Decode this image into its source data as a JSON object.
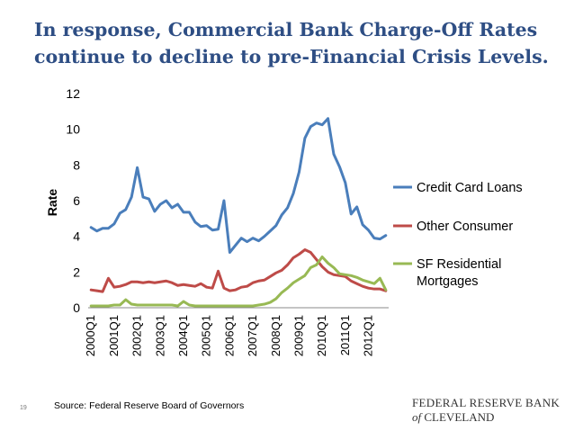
{
  "slide": {
    "title_line1": "In response, Commercial Bank Charge-Off Rates",
    "title_line2": "continue to decline to pre-Financial Crisis Levels.",
    "source": "Source:  Federal Reserve Board of Governors",
    "slide_number": "19",
    "logo_line1": "FEDERAL RESERVE BANK",
    "logo_of": "of",
    "logo_line2": "CLEVELAND"
  },
  "chart_data": {
    "type": "line",
    "title": "",
    "xlabel": "",
    "ylabel": "Rate",
    "ylim": [
      0,
      12
    ],
    "yticks": [
      0,
      2,
      4,
      6,
      8,
      10,
      12
    ],
    "xtick_labels": [
      "2000Q1",
      "2001Q1",
      "2002Q1",
      "2003Q1",
      "2004Q1",
      "2005Q1",
      "2006Q1",
      "2007Q1",
      "2008Q1",
      "2009Q1",
      "2010Q1",
      "2011Q1",
      "2012Q1"
    ],
    "x_count": 52,
    "legend_position": "right",
    "series": [
      {
        "name": "Credit Card Loans",
        "color": "#4A7EBB",
        "values": [
          4.5,
          4.3,
          4.45,
          4.45,
          4.7,
          5.3,
          5.5,
          6.2,
          7.85,
          6.2,
          6.1,
          5.4,
          5.8,
          6.0,
          5.6,
          5.8,
          5.35,
          5.35,
          4.8,
          4.55,
          4.6,
          4.35,
          4.4,
          6.0,
          3.1,
          3.5,
          3.9,
          3.7,
          3.9,
          3.75,
          4.0,
          4.3,
          4.6,
          5.2,
          5.6,
          6.4,
          7.6,
          9.5,
          10.15,
          10.35,
          10.25,
          10.6,
          8.6,
          7.9,
          7.0,
          5.25,
          5.65,
          4.65,
          4.35,
          3.9,
          3.85,
          4.05
        ]
      },
      {
        "name": "Other Consumer",
        "color": "#BE4B48",
        "values": [
          1.0,
          0.95,
          0.9,
          1.65,
          1.15,
          1.2,
          1.3,
          1.45,
          1.45,
          1.4,
          1.45,
          1.4,
          1.45,
          1.5,
          1.4,
          1.25,
          1.3,
          1.25,
          1.2,
          1.35,
          1.15,
          1.1,
          2.05,
          1.1,
          0.95,
          1.0,
          1.15,
          1.2,
          1.4,
          1.5,
          1.55,
          1.75,
          1.95,
          2.1,
          2.4,
          2.8,
          3.0,
          3.25,
          3.1,
          2.7,
          2.3,
          2.0,
          1.85,
          1.8,
          1.75,
          1.5,
          1.35,
          1.2,
          1.1,
          1.05,
          1.05,
          0.95
        ]
      },
      {
        "name": "SF Residential Mortgages",
        "name_line1": "SF Residential",
        "name_line2": "Mortgages",
        "color": "#98B954",
        "values": [
          0.1,
          0.1,
          0.1,
          0.1,
          0.15,
          0.15,
          0.45,
          0.2,
          0.15,
          0.15,
          0.15,
          0.15,
          0.15,
          0.15,
          0.15,
          0.1,
          0.35,
          0.15,
          0.1,
          0.1,
          0.1,
          0.1,
          0.1,
          0.1,
          0.1,
          0.1,
          0.1,
          0.1,
          0.1,
          0.15,
          0.2,
          0.3,
          0.5,
          0.85,
          1.1,
          1.4,
          1.6,
          1.8,
          2.25,
          2.4,
          2.85,
          2.5,
          2.25,
          1.9,
          1.85,
          1.8,
          1.7,
          1.55,
          1.45,
          1.35,
          1.65,
          1.0
        ]
      }
    ]
  }
}
